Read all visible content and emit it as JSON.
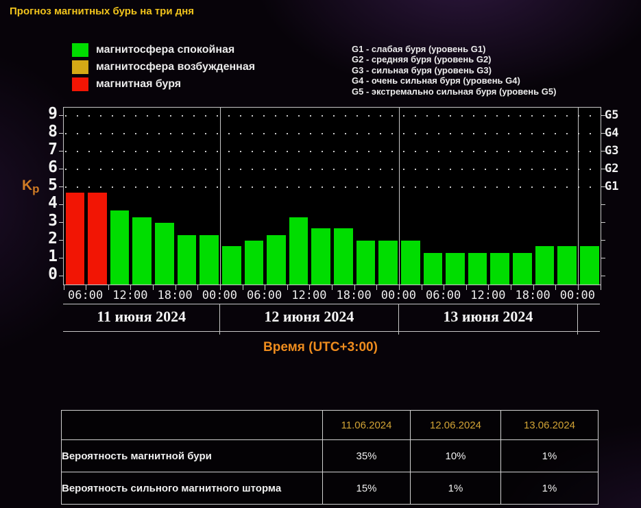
{
  "page": {
    "title": "Прогноз магнитных бурь на три дня"
  },
  "legend": {
    "items": [
      {
        "label": "магнитосфера спокойная",
        "color": "#00dd00"
      },
      {
        "label": "магнитосфера возбужденная",
        "color": "#d4a816"
      },
      {
        "label": "магнитная буря",
        "color": "#f21504"
      }
    ]
  },
  "storm_levels": [
    "G1 - слабая буря (уровень G1)",
    "G2 - средняя буря (уровень G2)",
    "G3 - сильная буря (уровень G3)",
    "G4 - очень сильная буря (уровень G4)",
    "G5 - экстремально сильная буря (уровень G5)"
  ],
  "chart_data": {
    "type": "bar",
    "title": "Прогноз магнитных бурь на три дня",
    "ylabel": "Kp",
    "kp_label": {
      "k": "K",
      "p": "p"
    },
    "xlabel": "Время (UTC+3:00)",
    "ylim": [
      0,
      9.5
    ],
    "yticks": [
      0,
      1,
      2,
      3,
      4,
      5,
      6,
      7,
      8,
      9
    ],
    "grid_levels": [
      5,
      6,
      7,
      8,
      9
    ],
    "right_axis": [
      {
        "kp": 5,
        "label": "G1"
      },
      {
        "kp": 6,
        "label": "G2"
      },
      {
        "kp": 7,
        "label": "G3"
      },
      {
        "kp": 8,
        "label": "G4"
      },
      {
        "kp": 9,
        "label": "G5"
      }
    ],
    "start_hour": 3,
    "end_hour": 75,
    "bar_interval_hours": 3,
    "bar_colors": {
      "quiet": "#00dd00",
      "excited": "#d4a816",
      "storm": "#f21504"
    },
    "day_boundaries_hours": [
      24,
      48,
      72
    ],
    "days": [
      {
        "date": "11 июня 2024",
        "start_hour": 3,
        "values": [
          4.7,
          4.7,
          3.7,
          3.3,
          3.0,
          2.3,
          2.3
        ],
        "statuses": [
          "storm",
          "storm",
          "quiet",
          "quiet",
          "quiet",
          "quiet",
          "quiet"
        ]
      },
      {
        "date": "12 июня 2024",
        "start_hour": 24,
        "values": [
          1.7,
          2.0,
          2.3,
          3.3,
          2.7,
          2.7,
          2.0,
          2.0
        ],
        "statuses": [
          "quiet",
          "quiet",
          "quiet",
          "quiet",
          "quiet",
          "quiet",
          "quiet",
          "quiet"
        ]
      },
      {
        "date": "13 июня 2024",
        "start_hour": 48,
        "values": [
          2.0,
          1.3,
          1.3,
          1.3,
          1.3,
          1.3,
          1.7,
          1.7
        ],
        "statuses": [
          "quiet",
          "quiet",
          "quiet",
          "quiet",
          "quiet",
          "quiet",
          "quiet",
          "quiet"
        ]
      },
      {
        "date": "",
        "start_hour": 72,
        "values": [
          1.7
        ],
        "statuses": [
          "quiet"
        ]
      }
    ],
    "time_ticks": [
      {
        "hour": 6,
        "label": "06:00"
      },
      {
        "hour": 12,
        "label": "12:00"
      },
      {
        "hour": 18,
        "label": "18:00"
      },
      {
        "hour": 24,
        "label": "00:00"
      },
      {
        "hour": 30,
        "label": "06:00"
      },
      {
        "hour": 36,
        "label": "12:00"
      },
      {
        "hour": 42,
        "label": "18:00"
      },
      {
        "hour": 48,
        "label": "00:00"
      },
      {
        "hour": 54,
        "label": "06:00"
      },
      {
        "hour": 60,
        "label": "12:00"
      },
      {
        "hour": 66,
        "label": "18:00"
      },
      {
        "hour": 72,
        "label": "00:00"
      }
    ]
  },
  "table": {
    "header": [
      "",
      "11.06.2024",
      "12.06.2024",
      "13.06.2024"
    ],
    "rows": [
      {
        "label": "Вероятность магнитной бури",
        "values": [
          "35%",
          "10%",
          "1%"
        ]
      },
      {
        "label": "Вероятность сильного магнитного шторма",
        "values": [
          "15%",
          "1%",
          "1%"
        ]
      }
    ]
  }
}
